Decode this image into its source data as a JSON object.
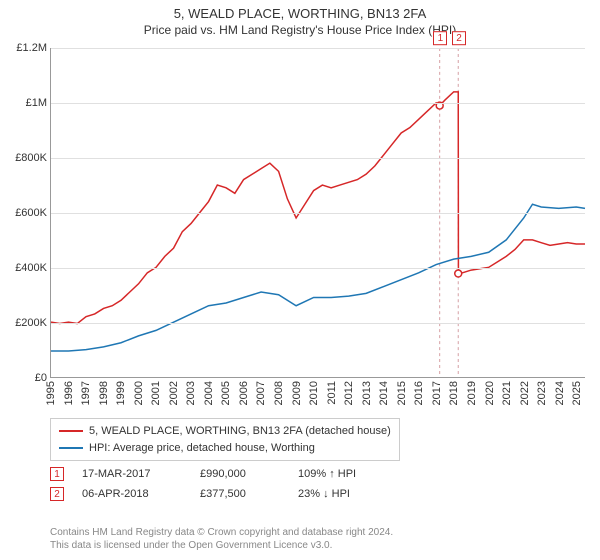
{
  "title": "5, WEALD PLACE, WORTHING, BN13 2FA",
  "subtitle": "Price paid vs. HM Land Registry's House Price Index (HPI)",
  "chart": {
    "type": "line",
    "background_color": "#ffffff",
    "grid_color": "#e0e0e0",
    "axis_color": "#999999",
    "x": {
      "min": 1995,
      "max": 2025.5,
      "ticks": [
        1995,
        1996,
        1997,
        1998,
        1999,
        2000,
        2001,
        2002,
        2003,
        2004,
        2005,
        2006,
        2007,
        2008,
        2009,
        2010,
        2011,
        2012,
        2013,
        2014,
        2015,
        2016,
        2017,
        2018,
        2019,
        2020,
        2021,
        2022,
        2023,
        2024,
        2025
      ],
      "label_fontsize": 11
    },
    "y": {
      "min": 0,
      "max": 1200000,
      "ticks": [
        0,
        200000,
        400000,
        600000,
        800000,
        1000000,
        1200000
      ],
      "tick_labels": [
        "£0",
        "£200K",
        "£400K",
        "£600K",
        "£800K",
        "£1M",
        "£1.2M"
      ],
      "label_fontsize": 11
    },
    "series": [
      {
        "legend": "5, WEALD PLACE, WORTHING, BN13 2FA (detached house)",
        "color": "#d62728",
        "line_width": 1.5,
        "points": [
          [
            1995,
            200000
          ],
          [
            1995.5,
            195000
          ],
          [
            1996,
            200000
          ],
          [
            1996.5,
            195000
          ],
          [
            1997,
            220000
          ],
          [
            1997.5,
            230000
          ],
          [
            1998,
            250000
          ],
          [
            1998.5,
            260000
          ],
          [
            1999,
            280000
          ],
          [
            1999.5,
            310000
          ],
          [
            2000,
            340000
          ],
          [
            2000.5,
            380000
          ],
          [
            2001,
            400000
          ],
          [
            2001.5,
            440000
          ],
          [
            2002,
            470000
          ],
          [
            2002.5,
            530000
          ],
          [
            2003,
            560000
          ],
          [
            2003.5,
            600000
          ],
          [
            2004,
            640000
          ],
          [
            2004.5,
            700000
          ],
          [
            2005,
            690000
          ],
          [
            2005.5,
            670000
          ],
          [
            2006,
            720000
          ],
          [
            2006.5,
            740000
          ],
          [
            2007,
            760000
          ],
          [
            2007.5,
            780000
          ],
          [
            2008,
            750000
          ],
          [
            2008.5,
            650000
          ],
          [
            2009,
            580000
          ],
          [
            2009.5,
            630000
          ],
          [
            2010,
            680000
          ],
          [
            2010.5,
            700000
          ],
          [
            2011,
            690000
          ],
          [
            2011.5,
            700000
          ],
          [
            2012,
            710000
          ],
          [
            2012.5,
            720000
          ],
          [
            2013,
            740000
          ],
          [
            2013.5,
            770000
          ],
          [
            2014,
            810000
          ],
          [
            2014.5,
            850000
          ],
          [
            2015,
            890000
          ],
          [
            2015.5,
            910000
          ],
          [
            2016,
            940000
          ],
          [
            2016.5,
            970000
          ],
          [
            2017,
            1000000
          ],
          [
            2017.2,
            990000
          ],
          [
            2017.5,
            1010000
          ],
          [
            2018,
            1040000
          ],
          [
            2018.26,
            1040000
          ],
          [
            2018.27,
            377500
          ],
          [
            2018.5,
            380000
          ],
          [
            2019,
            390000
          ],
          [
            2019.5,
            395000
          ],
          [
            2020,
            400000
          ],
          [
            2020.5,
            420000
          ],
          [
            2021,
            440000
          ],
          [
            2021.5,
            465000
          ],
          [
            2022,
            500000
          ],
          [
            2022.5,
            500000
          ],
          [
            2023,
            490000
          ],
          [
            2023.5,
            480000
          ],
          [
            2024,
            485000
          ],
          [
            2024.5,
            490000
          ],
          [
            2025,
            485000
          ],
          [
            2025.5,
            485000
          ]
        ]
      },
      {
        "legend": "HPI: Average price, detached house, Worthing",
        "color": "#1f77b4",
        "line_width": 1.5,
        "points": [
          [
            1995,
            95000
          ],
          [
            1996,
            95000
          ],
          [
            1997,
            100000
          ],
          [
            1998,
            110000
          ],
          [
            1999,
            125000
          ],
          [
            2000,
            150000
          ],
          [
            2001,
            170000
          ],
          [
            2002,
            200000
          ],
          [
            2003,
            230000
          ],
          [
            2004,
            260000
          ],
          [
            2005,
            270000
          ],
          [
            2006,
            290000
          ],
          [
            2007,
            310000
          ],
          [
            2008,
            300000
          ],
          [
            2009,
            260000
          ],
          [
            2010,
            290000
          ],
          [
            2011,
            290000
          ],
          [
            2012,
            295000
          ],
          [
            2013,
            305000
          ],
          [
            2014,
            330000
          ],
          [
            2015,
            355000
          ],
          [
            2016,
            380000
          ],
          [
            2017,
            410000
          ],
          [
            2018,
            430000
          ],
          [
            2019,
            440000
          ],
          [
            2020,
            455000
          ],
          [
            2021,
            500000
          ],
          [
            2022,
            580000
          ],
          [
            2022.5,
            630000
          ],
          [
            2023,
            620000
          ],
          [
            2024,
            615000
          ],
          [
            2025,
            620000
          ],
          [
            2025.5,
            615000
          ]
        ]
      }
    ],
    "event_markers": [
      {
        "x": 2017.2,
        "y": 990000,
        "label": "1",
        "color": "#d62728",
        "vline_color": "#d6a0a4"
      },
      {
        "x": 2018.26,
        "y": 377500,
        "label": "2",
        "color": "#d62728",
        "vline_color": "#d6a0a4"
      }
    ]
  },
  "events": [
    {
      "marker": "1",
      "marker_color": "#d62728",
      "date": "17-MAR-2017",
      "price": "£990,000",
      "pct_text": "109% ↑ HPI"
    },
    {
      "marker": "2",
      "marker_color": "#d62728",
      "date": "06-APR-2018",
      "price": "£377,500",
      "pct_text": "23% ↓ HPI"
    }
  ],
  "footer": {
    "line1": "Contains HM Land Registry data © Crown copyright and database right 2024.",
    "line2": "This data is licensed under the Open Government Licence v3.0."
  }
}
